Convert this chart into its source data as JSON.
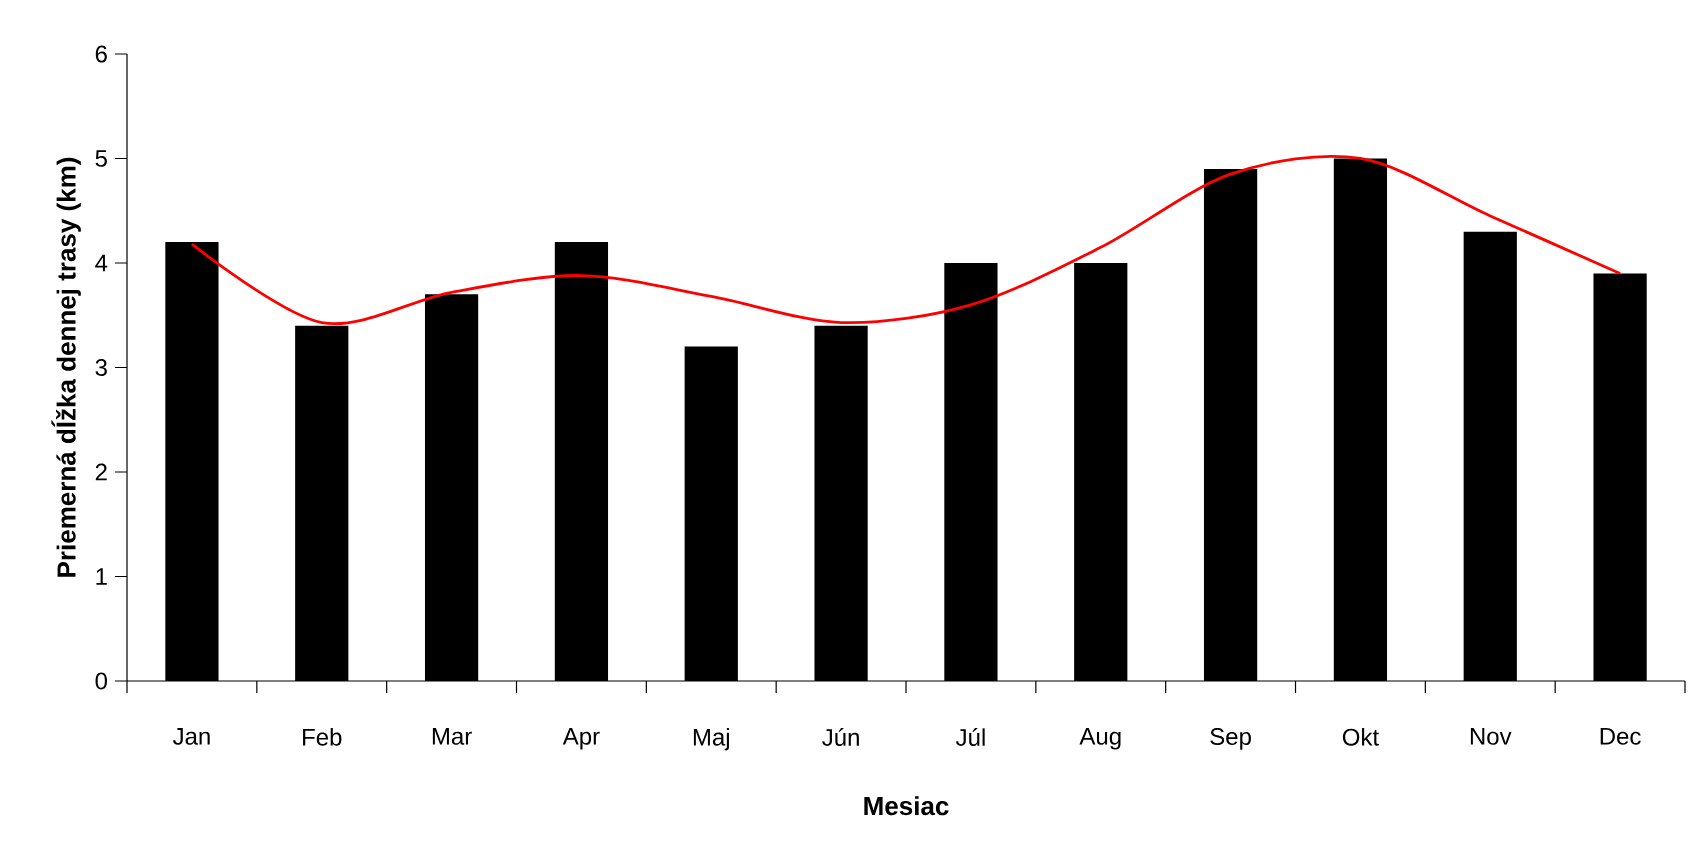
{
  "chart_data": {
    "type": "bar",
    "xlabel": "Mesiac",
    "ylabel": "Priemerná dĺžka dennej trasy (km)",
    "categories": [
      "Jan",
      "Feb",
      "Mar",
      "Apr",
      "Maj",
      "Jún",
      "Júl",
      "Aug",
      "Sep",
      "Okt",
      "Nov",
      "Dec"
    ],
    "ylim": [
      0,
      6
    ],
    "yticks": [
      0,
      1,
      2,
      3,
      4,
      5,
      6
    ],
    "series": [
      {
        "color": "#000000",
        "values": [
          4.2,
          3.4,
          3.7,
          4.2,
          3.2,
          3.4,
          4.0,
          4.0,
          4.9,
          5.0,
          4.3,
          3.9
        ]
      },
      {
        "type": "line",
        "color": "#ff0000",
        "marker": "none",
        "line_style": "solid",
        "values": [
          4.18,
          3.43,
          3.72,
          3.88,
          3.68,
          3.43,
          3.6,
          4.15,
          4.85,
          5.0,
          4.45,
          3.9
        ]
      }
    ]
  }
}
